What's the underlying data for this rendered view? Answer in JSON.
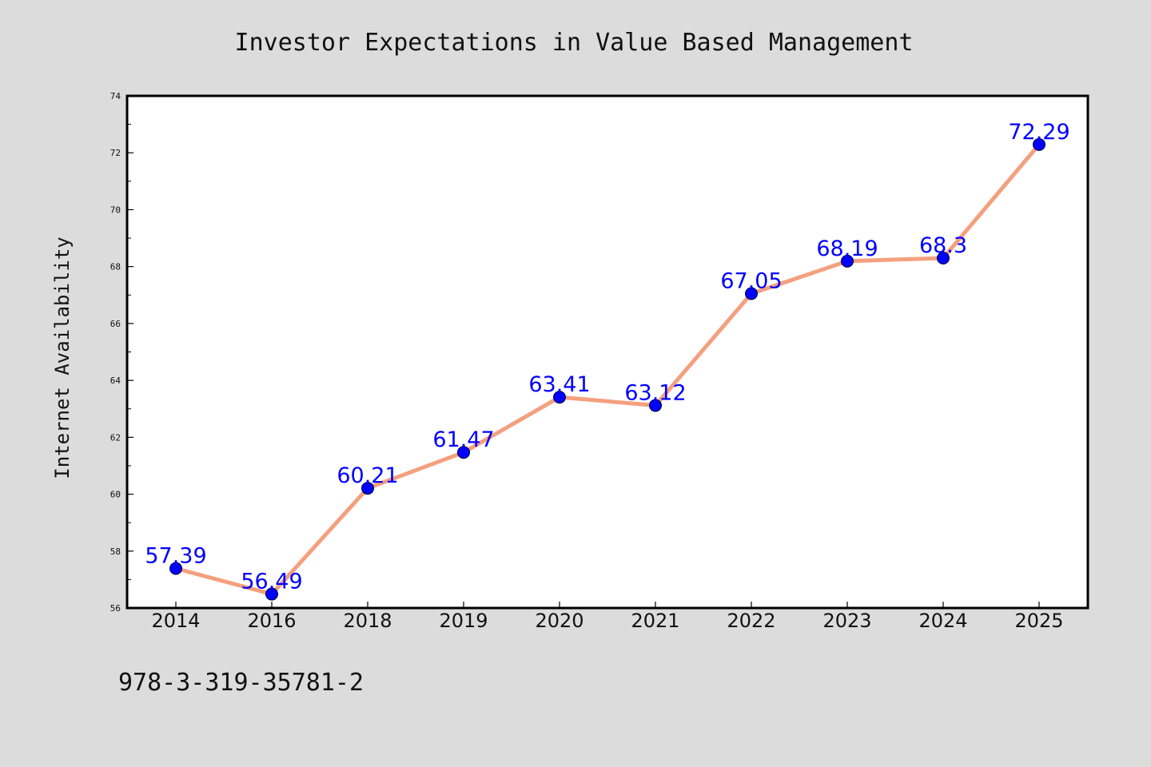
{
  "chart_data": {
    "type": "line",
    "title": "Investor Expectations in Value Based Management",
    "xlabel": "",
    "ylabel": "Internet Availability",
    "categories": [
      "2014",
      "2016",
      "2018",
      "2019",
      "2020",
      "2021",
      "2022",
      "2023",
      "2024",
      "2025"
    ],
    "values": [
      57.39,
      56.49,
      60.21,
      61.47,
      63.41,
      63.12,
      67.05,
      68.19,
      68.3,
      72.29
    ],
    "data_labels": [
      "57.39",
      "56.49",
      "60.21",
      "61.47",
      "63.41",
      "63.12",
      "67.05",
      "68.19",
      "68.3",
      "72.29"
    ],
    "ylim": [
      56,
      74
    ],
    "yticks": [
      56,
      58,
      60,
      62,
      64,
      66,
      68,
      70,
      72,
      74
    ],
    "grid": false,
    "legend": "none",
    "line_color": "#f4a07e",
    "marker_color": "#0000ff",
    "label_color": "#0000ff",
    "annotation": "978-3-319-35781-2"
  }
}
